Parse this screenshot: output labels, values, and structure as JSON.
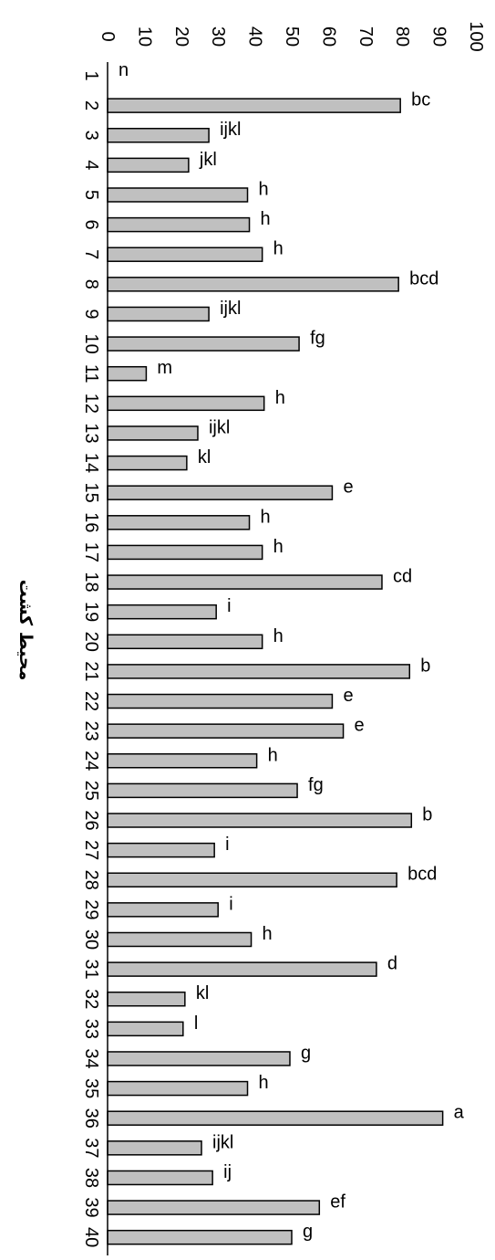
{
  "chart_data": {
    "type": "bar",
    "orientation": "horizontal",
    "title": "",
    "xlabel": "محیط کشت",
    "ylabel": "",
    "ylim": [
      0,
      100
    ],
    "ticks": [
      "0",
      "10",
      "20",
      "30",
      "40",
      "50",
      "60",
      "70",
      "80",
      "90",
      "100"
    ],
    "categories": [
      "1",
      "2",
      "3",
      "4",
      "5",
      "6",
      "7",
      "8",
      "9",
      "10",
      "11",
      "12",
      "13",
      "14",
      "15",
      "16",
      "17",
      "18",
      "19",
      "20",
      "21",
      "22",
      "23",
      "24",
      "25",
      "26",
      "27",
      "28",
      "29",
      "30",
      "31",
      "32",
      "33",
      "34",
      "35",
      "36",
      "37",
      "38",
      "39",
      "40"
    ],
    "values": [
      0,
      79.5,
      27.5,
      22,
      38,
      38.5,
      42,
      79,
      27.5,
      52,
      10.5,
      42.5,
      24.5,
      21.5,
      61,
      38.5,
      42,
      74.5,
      29.5,
      42,
      82,
      61,
      64,
      40.5,
      51.5,
      82.5,
      29,
      78.5,
      30,
      39,
      73,
      21,
      20.5,
      49.5,
      38,
      91,
      25.5,
      28.5,
      57.5,
      50
    ],
    "labels": [
      "n",
      "bc",
      "ijkl",
      "jkl",
      "h",
      "h",
      "h",
      "bcd",
      "ijkl",
      "fg",
      "m",
      "h",
      "ijkl",
      "kl",
      "e",
      "h",
      "h",
      "cd",
      "i",
      "h",
      "b",
      "e",
      "e",
      "h",
      "fg",
      "b",
      "i",
      "bcd",
      "i",
      "h",
      "d",
      "kl",
      "l",
      "g",
      "h",
      "a",
      "ijkl",
      "ij",
      "ef",
      "g"
    ],
    "bar_color": "#c0c0c0",
    "grid": false
  }
}
